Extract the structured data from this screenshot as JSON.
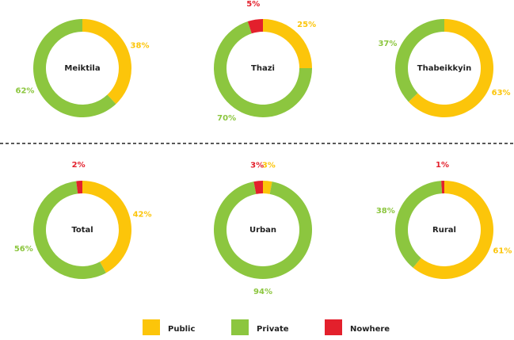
{
  "legend": {
    "labels": [
      "Public",
      "Private",
      "Nowhere"
    ],
    "colors": [
      "#fcc50a",
      "#8cc63f",
      "#e3202c"
    ]
  },
  "chart_data": [
    {
      "type": "donut",
      "title": "Meiktila",
      "values": [
        38,
        62,
        null
      ],
      "value_labels": [
        "38%",
        "62%",
        null
      ]
    },
    {
      "type": "donut",
      "title": "Thazi",
      "values": [
        25,
        70,
        5
      ],
      "value_labels": [
        "25%",
        "70%",
        "5%"
      ]
    },
    {
      "type": "donut",
      "title": "Thabeikkyin",
      "values": [
        63,
        37,
        null
      ],
      "value_labels": [
        "63%",
        "37%",
        null
      ]
    },
    {
      "type": "donut",
      "title": "Total",
      "values": [
        42,
        56,
        2
      ],
      "value_labels": [
        "42%",
        "56%",
        "2%"
      ]
    },
    {
      "type": "donut",
      "title": "Urban",
      "values": [
        3,
        94,
        3
      ],
      "value_labels": [
        "3%",
        "94%",
        "3%"
      ]
    },
    {
      "type": "donut",
      "title": "Rural",
      "values": [
        61,
        38,
        1
      ],
      "value_labels": [
        "61%",
        "38%",
        "1%"
      ]
    }
  ]
}
